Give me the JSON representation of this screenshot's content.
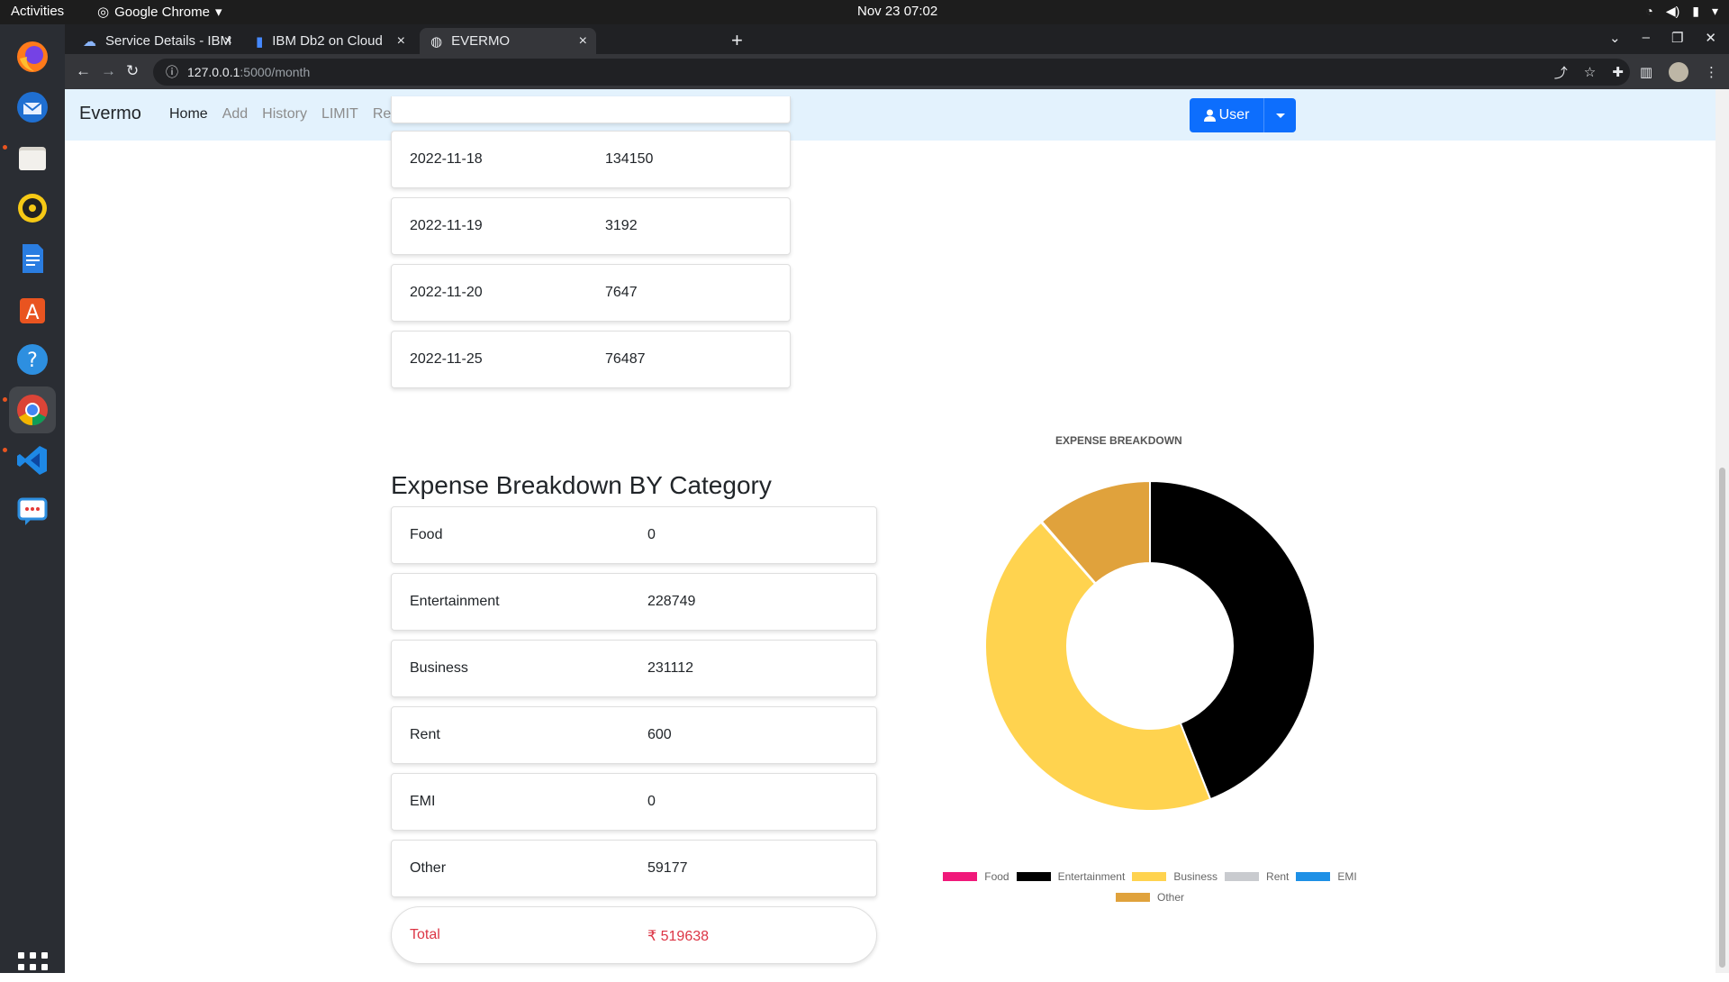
{
  "os": {
    "activities": "Activities",
    "app_name": "Google Chrome",
    "clock": "Nov 23  07:02"
  },
  "browser": {
    "tabs": [
      {
        "title": "Service Details - IBM Clou",
        "active": false
      },
      {
        "title": "IBM Db2 on Cloud",
        "active": false
      },
      {
        "title": "EVERMO",
        "active": true
      }
    ],
    "url_host": "127.0.0.1",
    "url_path": ":5000/month"
  },
  "navbar": {
    "brand": "Evermo",
    "links": [
      "Home",
      "Add",
      "History",
      "LIMIT",
      "Report"
    ],
    "user_button": "User"
  },
  "daily_rows": [
    {
      "date": "2022-11-18",
      "amount": "134150"
    },
    {
      "date": "2022-11-19",
      "amount": "3192"
    },
    {
      "date": "2022-11-20",
      "amount": "7647"
    },
    {
      "date": "2022-11-25",
      "amount": "76487"
    }
  ],
  "category_section": {
    "title": "Expense Breakdown BY Category",
    "rows": [
      {
        "name": "Food",
        "amount": "0"
      },
      {
        "name": "Entertainment",
        "amount": "228749"
      },
      {
        "name": "Business",
        "amount": "231112"
      },
      {
        "name": "Rent",
        "amount": "600"
      },
      {
        "name": "EMI",
        "amount": "0"
      },
      {
        "name": "Other",
        "amount": "59177"
      }
    ],
    "total_label": "Total",
    "total_value": "₹ 519638"
  },
  "chart_data": {
    "type": "pie",
    "title": "EXPENSE BREAKDOWN",
    "categories": [
      "Food",
      "Entertainment",
      "Business",
      "Rent",
      "EMI",
      "Other"
    ],
    "values": [
      0,
      228749,
      231112,
      600,
      0,
      59177
    ],
    "colors": [
      "#f0197a",
      "#000000",
      "#ffd34f",
      "#c9cbcf",
      "#1e90e6",
      "#e0a23c"
    ],
    "donut": true,
    "legend_position": "bottom"
  }
}
